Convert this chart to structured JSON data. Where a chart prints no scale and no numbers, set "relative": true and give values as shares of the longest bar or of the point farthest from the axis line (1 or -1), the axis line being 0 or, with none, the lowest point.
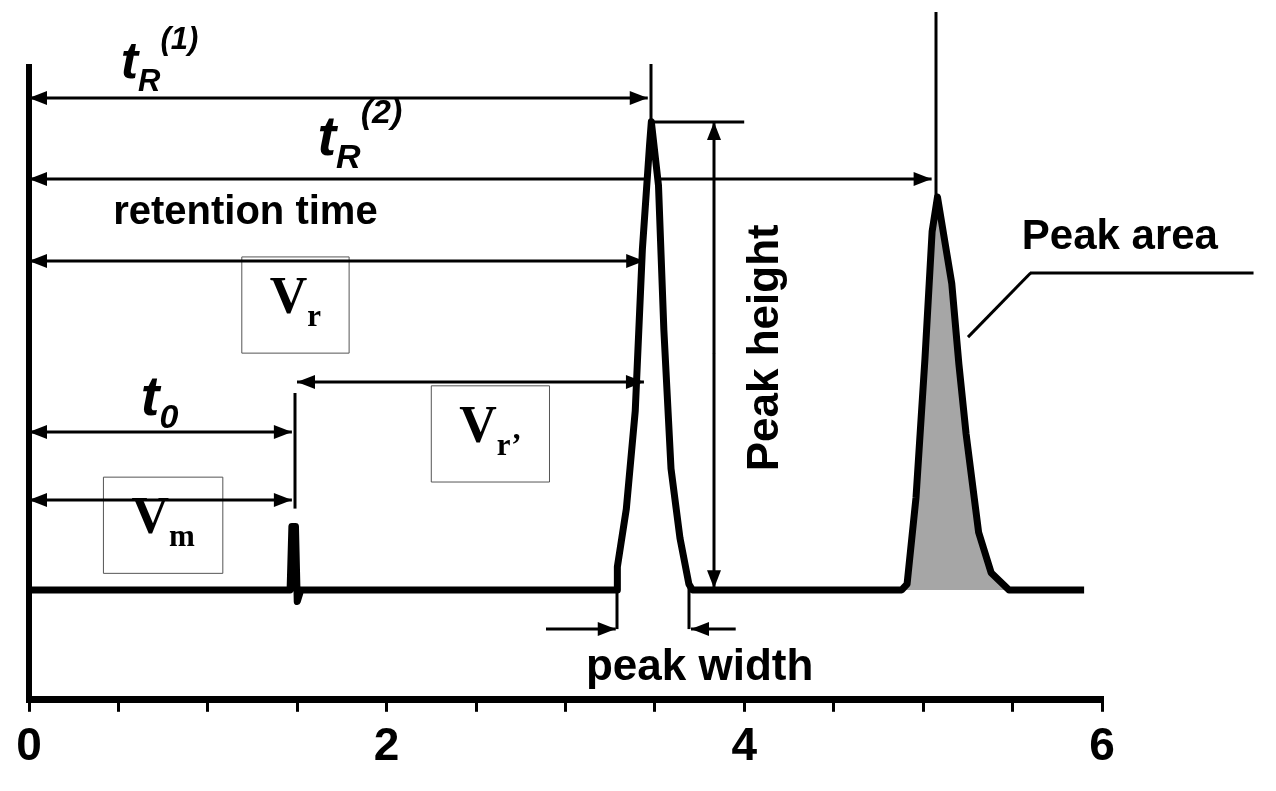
{
  "chart_data": {
    "type": "line",
    "relative": true,
    "xlim": [
      0,
      6
    ],
    "xticks": [
      0,
      {
        "value": 0.5,
        "label": null
      },
      {
        "value": 1,
        "label": null
      },
      {
        "value": 1.5,
        "label": null
      },
      2,
      {
        "value": 2.5,
        "label": null
      },
      {
        "value": 3,
        "label": null
      },
      {
        "value": 3.5,
        "label": null
      },
      4,
      {
        "value": 4.5,
        "label": null
      },
      {
        "value": 5,
        "label": null
      },
      {
        "value": 5.5,
        "label": null
      },
      6
    ],
    "grid": false,
    "legend": false,
    "marker": "none",
    "line_style": "solid",
    "annotations": [
      "t$_{R}$$^{(1)}$",
      "t$_{R}$$^{(2)}$",
      "retention time",
      "V$_{r}$",
      "V$_{r’}$",
      "t$_{0}$",
      "V$_{m}$",
      "Peak height",
      "Peak area",
      "peak width"
    ],
    "series": [
      {
        "type": "area",
        "color": "#a6a6a6",
        "x": [
          4.88,
          4.91,
          4.96,
          5.01,
          5.05,
          5.08,
          5.16,
          5.2,
          5.24,
          5.31,
          5.38,
          5.48
        ],
        "values": [
          0.19,
          0.2,
          0.35,
          0.59,
          0.81,
          0.87,
          0.72,
          0.58,
          0.46,
          0.29,
          0.22,
          0.19
        ]
      },
      {
        "color": "#000000",
        "x": [
          0,
          1.46,
          1.47,
          1.49,
          1.5,
          1.52,
          3.29,
          3.29,
          3.34,
          3.39,
          3.43,
          3.47,
          3.48,
          3.52,
          3.55,
          3.59,
          3.64,
          3.69,
          3.71,
          4.88,
          4.91,
          4.96,
          5.01,
          5.05,
          5.08,
          5.16,
          5.2,
          5.24,
          5.31,
          5.38,
          5.48,
          5.9
        ],
        "values": [
          0.19,
          0.19,
          0.3,
          0.3,
          0.17,
          0.19,
          0.19,
          0.23,
          0.33,
          0.5,
          0.78,
          0.96,
          1,
          0.89,
          0.64,
          0.4,
          0.28,
          0.2,
          0.19,
          0.19,
          0.2,
          0.35,
          0.59,
          0.81,
          0.87,
          0.72,
          0.58,
          0.46,
          0.29,
          0.22,
          0.19,
          0.19
        ]
      }
    ]
  }
}
